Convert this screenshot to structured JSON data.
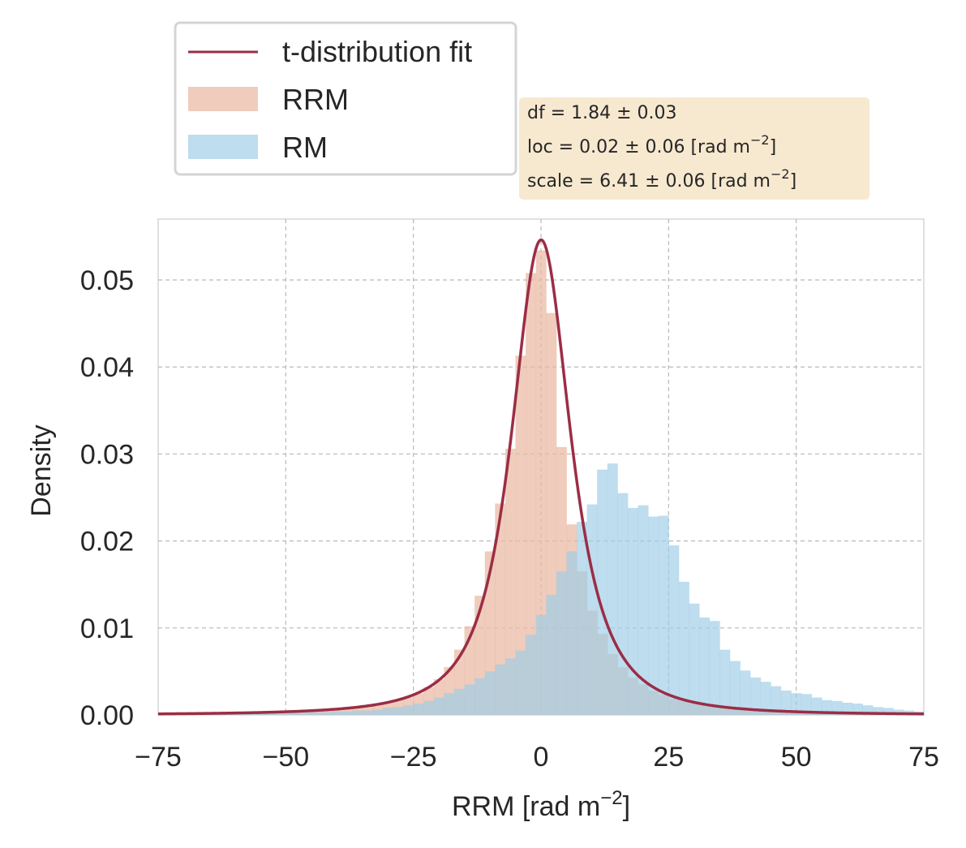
{
  "colors": {
    "rrm": "#e9b9a2",
    "rm": "#9fcde6",
    "fit": "#9b2d45",
    "grid": "#b9b9b9",
    "statsBox": "#f7e9d0"
  },
  "legend": {
    "fit_label": "t-distribution fit",
    "rrm_label": "RRM",
    "rm_label": "RM"
  },
  "stats": {
    "line1": "df = 1.84 ± 0.03",
    "line2": "loc = 0.02 ± 0.06 [rad m",
    "line3": "scale = 6.41 ± 0.06 [rad m",
    "exp": "−2",
    "close": "]"
  },
  "chart_data": {
    "type": "histogram",
    "xlabel": "RRM [rad m",
    "xlabel_exp": "−2",
    "xlabel_close": "]",
    "ylabel": "Density",
    "xlim": [
      -75,
      75
    ],
    "ylim": [
      0,
      0.057
    ],
    "xticks": [
      -75,
      -50,
      -25,
      0,
      25,
      50,
      75
    ],
    "xtick_labels": [
      "−75",
      "−50",
      "−25",
      "0",
      "25",
      "50",
      "75"
    ],
    "yticks": [
      0,
      0.01,
      0.02,
      0.03,
      0.04,
      0.05
    ],
    "ytick_labels": [
      "0.00",
      "0.01",
      "0.02",
      "0.03",
      "0.04",
      "0.05"
    ],
    "grid": true,
    "legend_position": "above-left",
    "bin_width": 2,
    "series": [
      {
        "name": "RRM",
        "bin_start": -75,
        "values": [
          0.0002,
          0.0002,
          0.0003,
          0.0003,
          0.0003,
          0.0003,
          0.0003,
          0.0003,
          0.0003,
          0.0003,
          0.0004,
          0.0004,
          0.0004,
          0.0004,
          0.0005,
          0.0005,
          0.0006,
          0.0007,
          0.0008,
          0.0009,
          0.001,
          0.0012,
          0.0014,
          0.0017,
          0.002,
          0.0025,
          0.0032,
          0.0041,
          0.0055,
          0.0075,
          0.0102,
          0.0137,
          0.0188,
          0.0243,
          0.0306,
          0.0413,
          0.0508,
          0.0534,
          0.0462,
          0.0308,
          0.0219,
          0.0165,
          0.012,
          0.0093,
          0.007,
          0.0055,
          0.0043,
          0.0035,
          0.0028,
          0.0023,
          0.0019,
          0.0016,
          0.0013,
          0.0011,
          0.001,
          0.0009,
          0.0008,
          0.0007,
          0.0006,
          0.0006,
          0.0005,
          0.0005,
          0.0004,
          0.0004,
          0.0004,
          0.0003,
          0.0003,
          0.0003,
          0.0003,
          0.0003,
          0.0003,
          0.0003,
          0.0002,
          0.0002,
          0.0002
        ]
      },
      {
        "name": "RM",
        "bin_start": -75,
        "values": [
          0.0002,
          0.0002,
          0.0001,
          0.0002,
          0.0001,
          0.0002,
          0.0002,
          0.0002,
          0.0002,
          0.0002,
          0.0002,
          0.0002,
          0.0003,
          0.0003,
          0.0003,
          0.0003,
          0.0003,
          0.0004,
          0.0004,
          0.0005,
          0.0005,
          0.0006,
          0.0008,
          0.0009,
          0.0011,
          0.0013,
          0.0016,
          0.002,
          0.0025,
          0.003,
          0.0035,
          0.0042,
          0.005,
          0.0058,
          0.0065,
          0.0074,
          0.0092,
          0.0115,
          0.0138,
          0.0165,
          0.0188,
          0.0222,
          0.0242,
          0.0282,
          0.0289,
          0.0255,
          0.0238,
          0.0241,
          0.0228,
          0.0229,
          0.0195,
          0.0153,
          0.0128,
          0.0112,
          0.0108,
          0.0075,
          0.0062,
          0.0051,
          0.0043,
          0.0038,
          0.0033,
          0.0028,
          0.0025,
          0.0024,
          0.002,
          0.0017,
          0.0016,
          0.0014,
          0.0013,
          0.0011,
          0.0009,
          0.0008,
          0.0006,
          0.0005,
          0.0004
        ]
      },
      {
        "name": "t-distribution fit",
        "type": "line",
        "distribution": "student-t",
        "df": 1.84,
        "loc": 0.02,
        "scale": 6.41
      }
    ]
  }
}
